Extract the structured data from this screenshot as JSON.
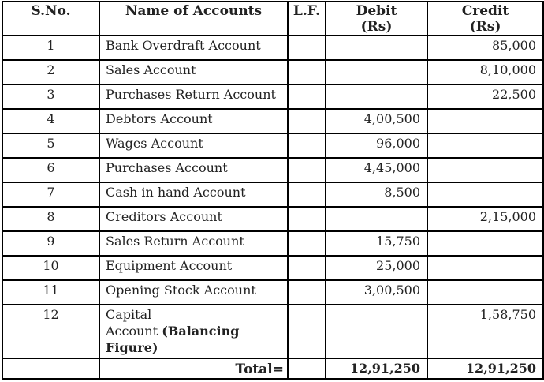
{
  "table": {
    "headers": [
      {
        "label": "S.No.",
        "sub": ""
      },
      {
        "label": "Name of Accounts",
        "sub": ""
      },
      {
        "label": "L.F.",
        "sub": ""
      },
      {
        "label": "Debit",
        "sub": "(Rs)"
      },
      {
        "label": "Credit",
        "sub": "(Rs)"
      }
    ],
    "rows": [
      {
        "sno": "1",
        "name": "Bank Overdraft Account",
        "lf": "",
        "debit": "",
        "credit": "85,000"
      },
      {
        "sno": "2",
        "name": "Sales Account",
        "lf": "",
        "debit": "",
        "credit": "8,10,000"
      },
      {
        "sno": "3",
        "name": "Purchases Return Account",
        "lf": "",
        "debit": "",
        "credit": "22,500"
      },
      {
        "sno": "4",
        "name": "Debtors Account",
        "lf": "",
        "debit": "4,00,500",
        "credit": ""
      },
      {
        "sno": "5",
        "name": "Wages Account",
        "lf": "",
        "debit": "96,000",
        "credit": ""
      },
      {
        "sno": "6",
        "name": "Purchases Account",
        "lf": "",
        "debit": "4,45,000",
        "credit": ""
      },
      {
        "sno": "7",
        "name": "Cash in hand Account",
        "lf": "",
        "debit": "8,500",
        "credit": ""
      },
      {
        "sno": "8",
        "name": "Creditors Account",
        "lf": "",
        "debit": "",
        "credit": "2,15,000"
      },
      {
        "sno": "9",
        "name": "Sales Return Account",
        "lf": "",
        "debit": "15,750",
        "credit": ""
      },
      {
        "sno": "10",
        "name": "Equipment Account",
        "lf": "",
        "debit": "25,000",
        "credit": ""
      },
      {
        "sno": "11",
        "name": "Opening Stock Account",
        "lf": "",
        "debit": "3,00,500",
        "credit": ""
      },
      {
        "sno": "12",
        "name_parts": [
          {
            "text": "Capital\nAccount ",
            "bold": false
          },
          {
            "text": "(Balancing\nFigure)",
            "bold": true
          }
        ],
        "tall": true,
        "lf": "",
        "debit": "",
        "credit": "1,58,750"
      }
    ],
    "total": {
      "label": "Total=",
      "lf": "",
      "debit": "12,91,250",
      "credit": "12,91,250"
    }
  },
  "colors": {
    "border": "#000000",
    "text": "#222222",
    "background": "#ffffff"
  }
}
